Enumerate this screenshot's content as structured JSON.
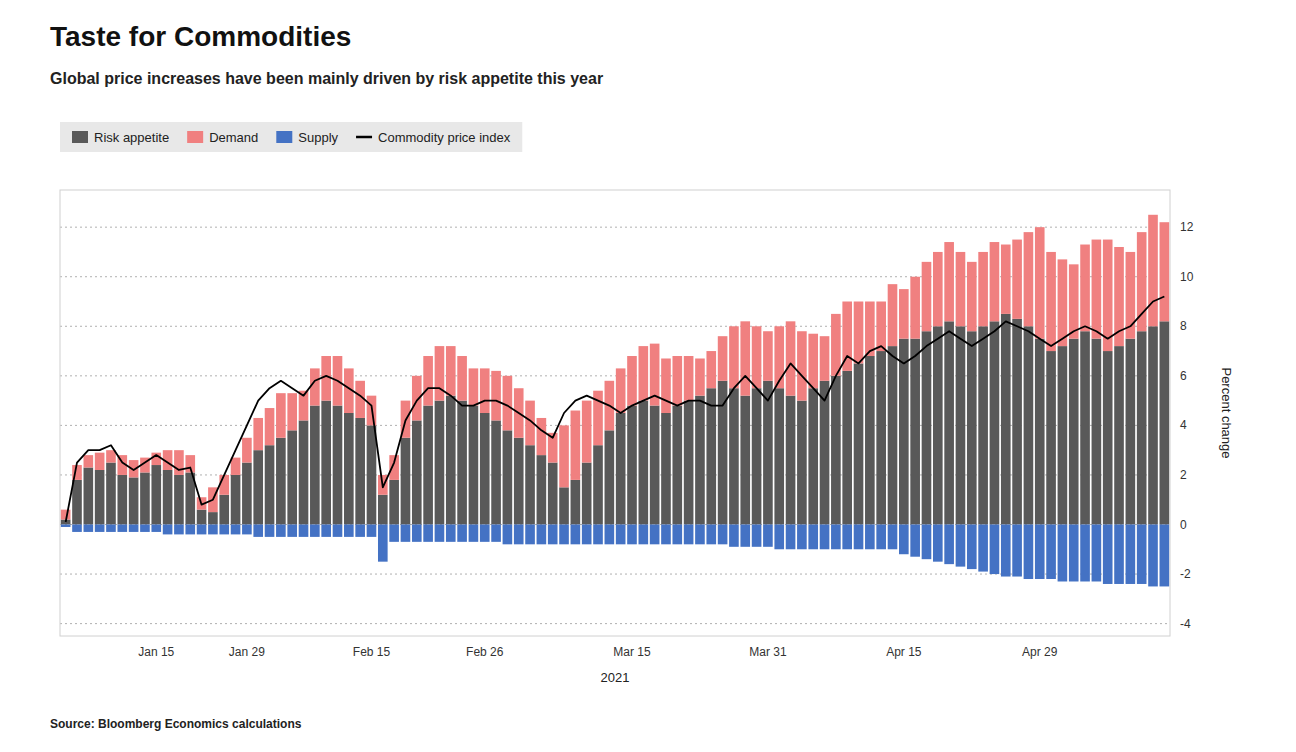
{
  "chart_data": {
    "type": "bar",
    "stacked": true,
    "title": "Taste for Commodities",
    "subtitle": "Global price increases have been mainly driven by risk appetite this year",
    "source": "Source: Bloomberg Economics calculations",
    "xlabel": "2021",
    "ylabel": "Percent change",
    "ylim": [
      -4.5,
      13.5
    ],
    "yticks": [
      -4,
      -2,
      0,
      2,
      4,
      6,
      8,
      10,
      12
    ],
    "grid": true,
    "legend": "upper left",
    "categories": [
      null,
      null,
      null,
      null,
      null,
      null,
      null,
      null,
      "Jan 15",
      null,
      null,
      null,
      null,
      null,
      null,
      null,
      "Jan 29",
      null,
      null,
      null,
      null,
      null,
      null,
      null,
      null,
      null,
      null,
      "Feb 15",
      null,
      null,
      null,
      null,
      null,
      null,
      null,
      null,
      null,
      "Feb 26",
      null,
      null,
      null,
      null,
      null,
      null,
      null,
      null,
      null,
      null,
      null,
      null,
      "Mar 15",
      null,
      null,
      null,
      null,
      null,
      null,
      null,
      null,
      null,
      null,
      null,
      "Mar 31",
      null,
      null,
      null,
      null,
      null,
      null,
      null,
      null,
      null,
      null,
      null,
      "Apr 15",
      null,
      null,
      null,
      null,
      null,
      null,
      null,
      null,
      null,
      null,
      null,
      "Apr 29",
      null,
      null,
      null,
      null,
      null,
      null,
      null,
      null,
      null,
      null,
      null
    ],
    "series": [
      {
        "name": "Risk appetite",
        "type": "bar",
        "color": "#595959",
        "values": [
          0.2,
          1.8,
          2.3,
          2.2,
          2.5,
          2.0,
          1.9,
          2.1,
          2.4,
          2.2,
          2.0,
          2.1,
          0.6,
          0.5,
          1.2,
          2.0,
          2.5,
          3.0,
          3.2,
          3.5,
          3.8,
          4.2,
          4.8,
          5.0,
          4.8,
          4.5,
          4.3,
          4.0,
          1.2,
          1.8,
          3.5,
          4.2,
          4.8,
          5.0,
          5.2,
          5.0,
          4.8,
          4.5,
          4.2,
          3.8,
          3.5,
          3.2,
          2.8,
          2.5,
          1.5,
          1.8,
          2.5,
          3.2,
          3.8,
          4.5,
          4.8,
          5.0,
          4.8,
          4.5,
          4.8,
          5.0,
          5.2,
          5.5,
          5.8,
          5.5,
          5.2,
          5.5,
          5.8,
          5.5,
          5.2,
          5.0,
          5.5,
          5.8,
          6.0,
          6.2,
          6.5,
          6.8,
          7.0,
          7.2,
          7.5,
          7.5,
          7.8,
          8.0,
          8.2,
          8.0,
          7.8,
          8.0,
          8.2,
          8.5,
          8.3,
          8.0,
          7.5,
          7.0,
          7.2,
          7.5,
          7.8,
          7.5,
          7.0,
          7.2,
          7.5,
          7.8,
          8.0,
          8.2
        ]
      },
      {
        "name": "Demand",
        "type": "bar",
        "color": "#F08080",
        "values": [
          0.4,
          0.6,
          0.5,
          0.7,
          0.5,
          0.8,
          0.7,
          0.6,
          0.5,
          0.8,
          1.0,
          0.7,
          0.5,
          1.0,
          0.8,
          0.7,
          1.0,
          1.3,
          1.5,
          1.8,
          1.5,
          1.2,
          1.5,
          1.8,
          2.0,
          1.8,
          1.5,
          1.2,
          0.8,
          1.0,
          1.5,
          1.8,
          2.0,
          2.2,
          2.0,
          1.8,
          1.5,
          1.8,
          2.0,
          2.2,
          2.0,
          1.8,
          1.5,
          1.2,
          2.5,
          2.8,
          2.5,
          2.2,
          2.0,
          1.8,
          2.0,
          2.2,
          2.5,
          2.2,
          2.0,
          1.8,
          1.5,
          1.5,
          1.8,
          2.5,
          3.0,
          2.5,
          2.0,
          2.5,
          3.0,
          2.8,
          2.2,
          1.8,
          2.5,
          2.8,
          2.5,
          2.2,
          2.0,
          2.5,
          2.0,
          2.5,
          2.8,
          3.0,
          3.2,
          3.0,
          2.8,
          3.0,
          3.2,
          2.8,
          3.2,
          3.8,
          4.5,
          4.0,
          3.5,
          3.0,
          3.5,
          4.0,
          4.5,
          4.0,
          3.5,
          4.0,
          4.5,
          4.0
        ]
      },
      {
        "name": "Supply",
        "type": "bar",
        "color": "#4472C4",
        "values": [
          -0.1,
          -0.3,
          -0.3,
          -0.3,
          -0.3,
          -0.3,
          -0.3,
          -0.3,
          -0.3,
          -0.4,
          -0.4,
          -0.4,
          -0.4,
          -0.4,
          -0.4,
          -0.4,
          -0.4,
          -0.5,
          -0.5,
          -0.5,
          -0.5,
          -0.5,
          -0.5,
          -0.5,
          -0.5,
          -0.5,
          -0.5,
          -0.5,
          -1.5,
          -0.7,
          -0.7,
          -0.7,
          -0.7,
          -0.7,
          -0.7,
          -0.7,
          -0.7,
          -0.7,
          -0.7,
          -0.8,
          -0.8,
          -0.8,
          -0.8,
          -0.8,
          -0.8,
          -0.8,
          -0.8,
          -0.8,
          -0.8,
          -0.8,
          -0.8,
          -0.8,
          -0.8,
          -0.8,
          -0.8,
          -0.8,
          -0.8,
          -0.8,
          -0.8,
          -0.9,
          -0.9,
          -0.9,
          -0.9,
          -1.0,
          -1.0,
          -1.0,
          -1.0,
          -1.0,
          -1.0,
          -1.0,
          -1.0,
          -1.0,
          -1.0,
          -1.0,
          -1.2,
          -1.3,
          -1.4,
          -1.5,
          -1.6,
          -1.7,
          -1.8,
          -1.9,
          -2.0,
          -2.1,
          -2.1,
          -2.2,
          -2.2,
          -2.2,
          -2.3,
          -2.3,
          -2.3,
          -2.3,
          -2.4,
          -2.4,
          -2.4,
          -2.4,
          -2.5,
          -2.5
        ]
      },
      {
        "name": "Commodity price index",
        "type": "line",
        "color": "#000000",
        "values": [
          0.1,
          2.5,
          3.0,
          3.0,
          3.2,
          2.5,
          2.2,
          2.5,
          2.8,
          2.5,
          2.2,
          2.3,
          0.8,
          1.0,
          2.0,
          3.0,
          4.0,
          5.0,
          5.5,
          5.8,
          5.5,
          5.2,
          5.8,
          6.0,
          5.8,
          5.5,
          5.2,
          4.8,
          1.5,
          2.5,
          4.2,
          5.0,
          5.5,
          5.5,
          5.2,
          4.8,
          4.8,
          5.0,
          5.0,
          4.8,
          4.5,
          4.2,
          3.8,
          3.5,
          4.5,
          5.0,
          5.2,
          5.0,
          4.8,
          4.5,
          4.8,
          5.0,
          5.2,
          5.0,
          4.8,
          5.0,
          5.0,
          4.8,
          4.8,
          5.5,
          6.0,
          5.5,
          5.0,
          5.8,
          6.5,
          6.0,
          5.5,
          5.0,
          6.0,
          6.8,
          6.5,
          7.0,
          7.2,
          6.8,
          6.5,
          6.8,
          7.2,
          7.5,
          7.8,
          7.5,
          7.2,
          7.5,
          7.8,
          8.2,
          8.0,
          7.8,
          7.5,
          7.2,
          7.5,
          7.8,
          8.0,
          7.8,
          7.5,
          7.8,
          8.0,
          8.5,
          9.0,
          9.2
        ]
      }
    ]
  }
}
